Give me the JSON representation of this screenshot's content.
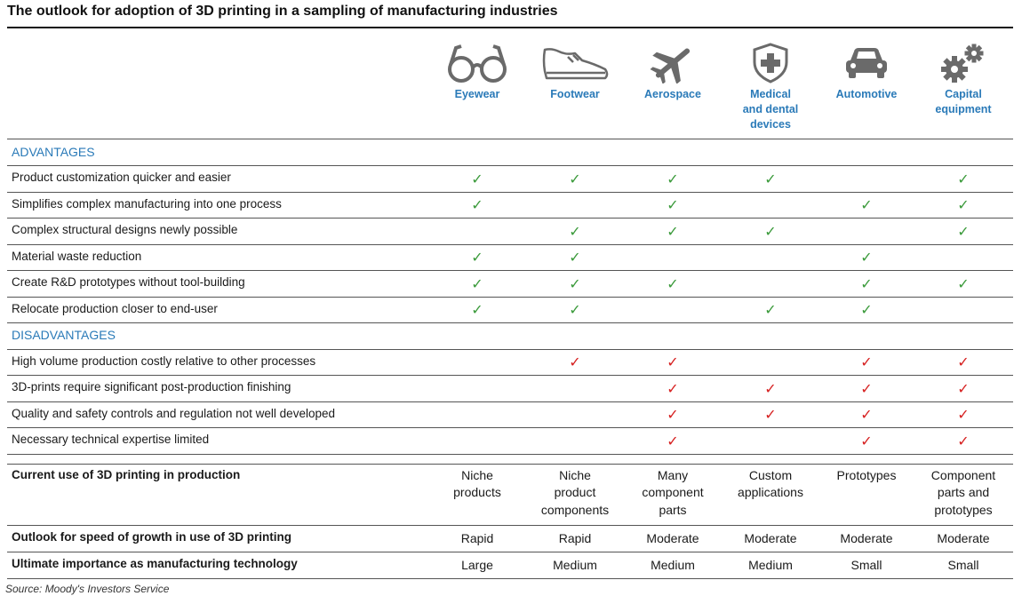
{
  "title": "The outlook for adoption of 3D printing in a sampling of manufacturing industries",
  "columns": [
    {
      "label": "Eyewear",
      "icon": "eyeglasses-icon"
    },
    {
      "label": "Footwear",
      "icon": "shoe-icon"
    },
    {
      "label": "Aerospace",
      "icon": "airplane-icon"
    },
    {
      "label": "Medical\nand dental\ndevices",
      "icon": "medical-shield-icon"
    },
    {
      "label": "Automotive",
      "icon": "car-icon"
    },
    {
      "label": "Capital\nequipment",
      "icon": "gears-icon"
    }
  ],
  "colors": {
    "accent": "#2a7ab8",
    "advantage_check": "#3a9a3a",
    "disadvantage_check": "#d62020",
    "icon_gray": "#6a6a6a"
  },
  "check_glyph": "✓",
  "advantages": {
    "heading": "ADVANTAGES",
    "rows": [
      {
        "label": "Product customization quicker and easier",
        "checks": [
          true,
          true,
          true,
          true,
          false,
          true
        ]
      },
      {
        "label": "Simplifies complex manufacturing into one process",
        "checks": [
          true,
          false,
          true,
          false,
          true,
          true
        ]
      },
      {
        "label": "Complex structural designs newly possible",
        "checks": [
          false,
          true,
          true,
          true,
          false,
          true
        ]
      },
      {
        "label": "Material waste reduction",
        "checks": [
          true,
          true,
          false,
          false,
          true,
          false
        ]
      },
      {
        "label": "Create R&D prototypes without tool-building",
        "checks": [
          true,
          true,
          true,
          false,
          true,
          true
        ]
      },
      {
        "label": "Relocate production closer to end-user",
        "checks": [
          true,
          true,
          false,
          true,
          true,
          false
        ]
      }
    ]
  },
  "disadvantages": {
    "heading": "DISADVANTAGES",
    "rows": [
      {
        "label": "High volume production costly relative to other processes",
        "checks": [
          false,
          true,
          true,
          false,
          true,
          true
        ]
      },
      {
        "label": "3D-prints require significant post-production finishing",
        "checks": [
          false,
          false,
          true,
          true,
          true,
          true
        ]
      },
      {
        "label": "Quality and safety controls and regulation not well developed",
        "checks": [
          false,
          false,
          true,
          true,
          true,
          true
        ]
      },
      {
        "label": "Necessary technical expertise limited",
        "checks": [
          false,
          false,
          true,
          false,
          true,
          true
        ]
      }
    ]
  },
  "summary": [
    {
      "label": "Current use of 3D printing in production",
      "values": [
        "Niche\nproducts",
        "Niche\nproduct\ncomponents",
        "Many\ncomponent\nparts",
        "Custom\napplications",
        "Prototypes",
        "Component\nparts and\nprototypes"
      ]
    },
    {
      "label": "Outlook for speed of growth in use of 3D printing",
      "values": [
        "Rapid",
        "Rapid",
        "Moderate",
        "Moderate",
        "Moderate",
        "Moderate"
      ]
    },
    {
      "label": "Ultimate importance as manufacturing technology",
      "values": [
        "Large",
        "Medium",
        "Medium",
        "Medium",
        "Small",
        "Small"
      ]
    }
  ],
  "source": "Source: Moody's Investors Service"
}
